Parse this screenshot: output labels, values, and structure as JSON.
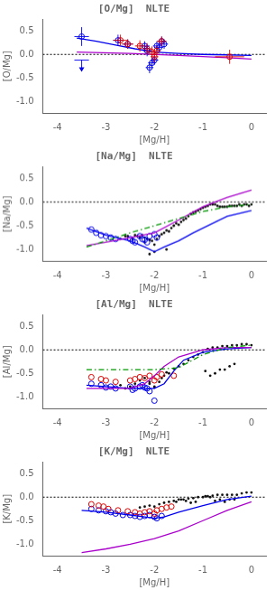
{
  "chart_data": [
    {
      "type": "scatter",
      "title": "[O/Mg]  NLTE",
      "xlabel": "[Mg/H]",
      "ylabel": "[O/Mg]",
      "xlim": [
        -4.3,
        0.3
      ],
      "xticks": [
        -4,
        -3,
        -2,
        -1,
        0
      ],
      "ylim": [
        -1.25,
        0.75
      ],
      "yticks": [
        {
          "value": -1.0,
          "label": "-1.0"
        },
        -0.5,
        {
          "value": 0.0,
          "label": "0.0"
        },
        0.5
      ],
      "grid": false,
      "legend": false,
      "series": [
        {
          "type": "hline",
          "color": "#000000",
          "line_style": "dotted",
          "values": [
            0
          ]
        },
        {
          "type": "line",
          "color": "#0000EE",
          "line_style": "solid",
          "x": [
            -3.6,
            -3.2,
            -2.8,
            -2.4,
            -2.0,
            -1.5,
            -1.0,
            -0.5,
            0.0
          ],
          "values": [
            0.35,
            0.28,
            0.2,
            0.12,
            0.05,
            0.02,
            0.0,
            -0.01,
            -0.02
          ]
        },
        {
          "type": "line",
          "color": "#AA00CC",
          "line_style": "solid",
          "x": [
            -3.6,
            -2.5,
            -1.5,
            -0.5,
            0.0
          ],
          "values": [
            0.05,
            0.02,
            -0.02,
            -0.07,
            -0.1
          ]
        },
        {
          "type": "scatter",
          "color": "#0000EE",
          "marker": "open_circle",
          "x": [
            -3.5,
            -2.75,
            -2.55,
            -2.2,
            -2.15,
            -2.1,
            -2.05,
            -2.0,
            -1.95,
            -1.9,
            -1.85,
            -1.8
          ],
          "values": [
            0.38,
            0.3,
            0.22,
            0.18,
            0.08,
            -0.28,
            -0.18,
            -0.12,
            0.18,
            0.15,
            0.28,
            0.22
          ],
          "xerr": [
            0.15,
            0.1,
            0.1,
            0.1,
            0.08,
            0.08,
            0.08,
            0.08,
            0.08,
            0.08,
            0.08,
            0.08
          ],
          "yerr": [
            0.2,
            0.12,
            0.1,
            0.1,
            0.12,
            0.12,
            0.1,
            0.1,
            0.1,
            0.1,
            0.1,
            0.1
          ]
        },
        {
          "type": "scatter",
          "color": "#0000EE",
          "marker": "down_arrow",
          "x": [
            -3.5
          ],
          "values": [
            -0.12
          ],
          "xerr": [
            0.15
          ]
        },
        {
          "type": "scatter",
          "color": "#DD0000",
          "marker": "open_circle",
          "x": [
            -2.7,
            -2.55,
            -2.3,
            -2.15,
            -2.05,
            -2.0,
            -1.95,
            -1.85,
            -0.45
          ],
          "values": [
            0.3,
            0.22,
            0.18,
            0.12,
            0.05,
            -0.05,
            0.08,
            0.28,
            -0.05
          ],
          "xerr": [
            0.15,
            0.12,
            0.1,
            0.1,
            0.08,
            0.08,
            0.08,
            0.1,
            0.3
          ],
          "yerr": [
            0.12,
            0.1,
            0.12,
            0.12,
            0.12,
            0.12,
            0.1,
            0.1,
            0.15
          ]
        }
      ]
    },
    {
      "type": "scatter",
      "title": "[Na/Mg]  NLTE",
      "xlabel": "[Mg/H]",
      "ylabel": "[Na/Mg]",
      "xlim": [
        -4.3,
        0.3
      ],
      "xticks": [
        -4,
        -3,
        -2,
        -1,
        0
      ],
      "ylim": [
        -1.25,
        0.75
      ],
      "yticks": [
        {
          "value": -1.0,
          "label": "-1.0"
        },
        -0.5,
        {
          "value": 0.0,
          "label": "0.0"
        },
        0.5
      ],
      "grid": false,
      "legend": false,
      "series": [
        {
          "type": "hline",
          "color": "#000000",
          "line_style": "dotted",
          "values": [
            0
          ]
        },
        {
          "type": "scatter",
          "color": "#111111",
          "marker": "dot",
          "x": [
            -2.55,
            -2.45,
            -2.4,
            -2.35,
            -2.3,
            -2.25,
            -2.2,
            -2.15,
            -2.1,
            -2.05,
            -2.0,
            -1.95,
            -1.9,
            -1.85,
            -1.8,
            -1.75,
            -1.7,
            -1.65,
            -1.6,
            -1.55,
            -1.5,
            -1.45,
            -1.4,
            -1.35,
            -1.3,
            -1.25,
            -1.2,
            -1.15,
            -1.1,
            -1.05,
            -1.0,
            -0.95,
            -0.9,
            -0.85,
            -0.8,
            -0.75,
            -0.7,
            -0.65,
            -0.6,
            -0.55,
            -0.5,
            -0.45,
            -0.4,
            -0.35,
            -0.3,
            -0.25,
            -0.2,
            -0.15,
            -0.1,
            -0.05,
            0.0,
            -2.6,
            -2.7,
            -1.75,
            -2.0,
            -2.1,
            -2.2
          ],
          "values": [
            -0.72,
            -0.78,
            -0.7,
            -0.72,
            -0.75,
            -0.7,
            -0.75,
            -0.78,
            -0.8,
            -0.82,
            -0.9,
            -0.78,
            -0.72,
            -0.68,
            -0.65,
            -0.6,
            -0.62,
            -0.55,
            -0.5,
            -0.45,
            -0.48,
            -0.42,
            -0.38,
            -0.35,
            -0.3,
            -0.25,
            -0.22,
            -0.2,
            -0.18,
            -0.15,
            -0.12,
            -0.1,
            -0.08,
            -0.05,
            -0.05,
            -0.05,
            -0.08,
            -0.1,
            -0.1,
            -0.1,
            -0.1,
            -0.08,
            -0.08,
            -0.08,
            -0.08,
            -0.05,
            -0.08,
            -0.05,
            -0.05,
            -0.08,
            -0.05,
            -0.72,
            -0.78,
            -1.0,
            -1.05,
            -1.1,
            -0.85
          ]
        },
        {
          "type": "scatter",
          "color": "#0000EE",
          "marker": "open_circle",
          "x": [
            -3.3,
            -3.2,
            -3.1,
            -3.0,
            -2.9,
            -2.8,
            -2.5,
            -2.45,
            -2.4,
            -2.3,
            -2.25,
            -2.2,
            -2.15,
            -2.1,
            -2.0,
            -1.95
          ],
          "values": [
            -0.58,
            -0.65,
            -0.7,
            -0.72,
            -0.75,
            -0.78,
            -0.78,
            -0.82,
            -0.85,
            -0.72,
            -0.78,
            -0.8,
            -0.85,
            -0.72,
            -0.68,
            -0.75
          ]
        },
        {
          "type": "line",
          "color": "#0000EE",
          "line_style": "solid",
          "x": [
            -3.4,
            -3.0,
            -2.5,
            -2.2,
            -2.0,
            -1.8,
            -1.5,
            -1.2,
            -1.0,
            -0.5,
            0.0
          ],
          "values": [
            -0.55,
            -0.7,
            -0.82,
            -0.95,
            -1.05,
            -0.95,
            -0.82,
            -0.65,
            -0.55,
            -0.3,
            -0.18
          ]
        },
        {
          "type": "line",
          "color": "#AA00CC",
          "line_style": "solid",
          "x": [
            -3.4,
            -3.0,
            -2.5,
            -2.0,
            -1.5,
            -1.0,
            -0.5,
            0.0
          ],
          "values": [
            -0.92,
            -0.85,
            -0.75,
            -0.65,
            -0.38,
            -0.1,
            0.1,
            0.25
          ]
        },
        {
          "type": "line",
          "color": "#009900",
          "line_style": "dashdot",
          "x": [
            -3.4,
            -3.0,
            -2.5,
            -2.0,
            -1.5,
            -1.0,
            -0.5,
            0.0
          ],
          "values": [
            -0.95,
            -0.82,
            -0.65,
            -0.5,
            -0.35,
            -0.2,
            -0.1,
            -0.05
          ]
        }
      ]
    },
    {
      "type": "scatter",
      "title": "[Al/Mg]  NLTE",
      "xlabel": "[Mg/H]",
      "ylabel": "[Al/Mg]",
      "xlim": [
        -4.3,
        0.3
      ],
      "xticks": [
        -4,
        -3,
        -2,
        -1,
        0
      ],
      "ylim": [
        -1.25,
        0.75
      ],
      "yticks": [
        {
          "value": -1.0,
          "label": "-1.0"
        },
        -0.5,
        {
          "value": 0.0,
          "label": "0.0"
        },
        0.5
      ],
      "grid": false,
      "legend": false,
      "series": [
        {
          "type": "hline",
          "color": "#000000",
          "line_style": "dotted",
          "values": [
            0
          ]
        },
        {
          "type": "scatter",
          "color": "#111111",
          "marker": "dot",
          "x": [
            -2.5,
            -2.4,
            -2.3,
            -2.2,
            -2.1,
            -2.0,
            -1.9,
            -1.8,
            -1.7,
            -1.6,
            -1.5,
            -1.4,
            -1.3,
            -1.2,
            -1.1,
            -1.0,
            -0.9,
            -0.8,
            -0.7,
            -0.6,
            -0.5,
            -0.4,
            -0.3,
            -0.2,
            -0.1,
            0.0,
            -2.6,
            -2.7,
            -1.75,
            -1.85,
            -2.0,
            -2.1,
            -0.35,
            -0.55,
            -0.75,
            -0.65,
            -0.45,
            -0.85,
            -0.95
          ],
          "values": [
            -0.78,
            -0.72,
            -0.65,
            -0.6,
            -0.72,
            -0.8,
            -0.68,
            -0.55,
            -0.5,
            -0.4,
            -0.35,
            -0.3,
            -0.22,
            -0.15,
            -0.1,
            -0.05,
            0.02,
            0.05,
            0.05,
            0.08,
            0.08,
            0.1,
            0.1,
            0.12,
            0.12,
            0.1,
            -0.82,
            -0.75,
            -0.48,
            -0.6,
            -0.78,
            -0.68,
            -0.3,
            -0.42,
            -0.5,
            -0.42,
            -0.35,
            -0.55,
            -0.45
          ]
        },
        {
          "type": "scatter",
          "color": "#0000EE",
          "marker": "open_circle",
          "x": [
            -3.3,
            -3.1,
            -3.0,
            -2.9,
            -2.8,
            -2.5,
            -2.45,
            -2.4,
            -2.3,
            -2.25,
            -2.2,
            -2.15,
            -2.1,
            -2.0
          ],
          "values": [
            -0.72,
            -0.75,
            -0.8,
            -0.78,
            -0.82,
            -0.78,
            -0.85,
            -0.82,
            -0.78,
            -0.75,
            -0.8,
            -0.82,
            -0.88,
            -1.08
          ]
        },
        {
          "type": "scatter",
          "color": "#DD0000",
          "marker": "open_circle",
          "x": [
            -3.3,
            -3.1,
            -3.0,
            -2.8,
            -2.5,
            -2.4,
            -2.3,
            -2.2,
            -2.1,
            -2.0,
            -1.95,
            -1.85,
            -1.6
          ],
          "values": [
            -0.58,
            -0.62,
            -0.65,
            -0.68,
            -0.65,
            -0.62,
            -0.58,
            -0.6,
            -0.55,
            -0.65,
            -0.58,
            -0.52,
            -0.55
          ]
        },
        {
          "type": "line",
          "color": "#0000EE",
          "line_style": "solid",
          "x": [
            -3.4,
            -3.0,
            -2.5,
            -2.2,
            -2.0,
            -1.8,
            -1.6,
            -1.4,
            -1.0,
            -0.5,
            0.0
          ],
          "values": [
            -0.75,
            -0.78,
            -0.82,
            -0.82,
            -0.82,
            -0.72,
            -0.45,
            -0.22,
            -0.05,
            0.02,
            0.05
          ]
        },
        {
          "type": "line",
          "color": "#AA00CC",
          "line_style": "solid",
          "x": [
            -3.4,
            -3.0,
            -2.5,
            -2.2,
            -2.0,
            -1.8,
            -1.5,
            -1.0,
            -0.5,
            0.0
          ],
          "values": [
            -0.82,
            -0.82,
            -0.82,
            -0.72,
            -0.55,
            -0.35,
            -0.15,
            0.0,
            0.05,
            0.05
          ]
        },
        {
          "type": "line",
          "color": "#009900",
          "line_style": "dashdot",
          "x": [
            -3.4,
            -3.0,
            -2.5,
            -2.0,
            -1.5,
            -1.0,
            -0.5,
            0.0
          ],
          "values": [
            -0.42,
            -0.42,
            -0.42,
            -0.42,
            -0.38,
            -0.1,
            0.05,
            0.1
          ]
        }
      ]
    },
    {
      "type": "scatter",
      "title": "[K/Mg]  NLTE",
      "xlabel": "[Mg/H]",
      "ylabel": "[K/Mg]",
      "xlim": [
        -4.3,
        0.3
      ],
      "xticks": [
        -4,
        -3,
        -2,
        -1,
        0
      ],
      "ylim": [
        -1.25,
        0.75
      ],
      "yticks": [
        {
          "value": -1.0,
          "label": "-1.0"
        },
        -0.5,
        {
          "value": 0.0,
          "label": "0.0"
        },
        0.5
      ],
      "grid": false,
      "legend": false,
      "series": [
        {
          "type": "hline",
          "color": "#000000",
          "line_style": "dotted",
          "values": [
            0
          ]
        },
        {
          "type": "scatter",
          "color": "#111111",
          "marker": "dot",
          "x": [
            -2.3,
            -2.2,
            -2.1,
            -2.0,
            -1.9,
            -1.8,
            -1.7,
            -1.6,
            -1.5,
            -1.4,
            -1.3,
            -1.2,
            -1.1,
            -1.0,
            -0.9,
            -0.8,
            -0.7,
            -0.6,
            -0.5,
            -0.4,
            -0.3,
            -0.2,
            -0.1,
            0.0,
            -0.35,
            -0.55,
            -0.75,
            -0.65,
            -1.15,
            -1.25,
            -1.35,
            -1.45,
            -1.55,
            -0.45,
            -0.85,
            -0.95
          ],
          "values": [
            -0.22,
            -0.2,
            -0.18,
            -0.2,
            -0.15,
            -0.12,
            -0.1,
            -0.08,
            -0.05,
            -0.05,
            -0.03,
            -0.02,
            0.0,
            0.0,
            0.02,
            0.03,
            0.05,
            0.05,
            0.05,
            0.05,
            0.05,
            0.08,
            0.1,
            0.1,
            -0.05,
            -0.1,
            -0.08,
            -0.05,
            -0.1,
            -0.12,
            -0.08,
            -0.05,
            -0.1,
            -0.05,
            0.0,
            0.02
          ]
        },
        {
          "type": "scatter",
          "color": "#0000EE",
          "marker": "open_circle",
          "x": [
            -3.3,
            -3.15,
            -3.0,
            -2.9,
            -2.8,
            -2.65,
            -2.5,
            -2.4,
            -2.3,
            -2.2,
            -2.1,
            -2.0,
            -1.95,
            -1.85
          ],
          "values": [
            -0.25,
            -0.28,
            -0.3,
            -0.32,
            -0.35,
            -0.38,
            -0.38,
            -0.4,
            -0.42,
            -0.4,
            -0.38,
            -0.42,
            -0.45,
            -0.4
          ]
        },
        {
          "type": "scatter",
          "color": "#DD0000",
          "marker": "open_circle",
          "x": [
            -3.3,
            -3.15,
            -3.05,
            -2.95,
            -2.75,
            -2.55,
            -2.4,
            -2.3,
            -2.2,
            -2.1,
            -2.0,
            -1.95,
            -1.85,
            -1.75,
            -1.65
          ],
          "values": [
            -0.15,
            -0.18,
            -0.2,
            -0.25,
            -0.28,
            -0.3,
            -0.32,
            -0.35,
            -0.32,
            -0.3,
            -0.35,
            -0.28,
            -0.25,
            -0.22,
            -0.2
          ]
        },
        {
          "type": "line",
          "color": "#0000EE",
          "line_style": "solid",
          "x": [
            -3.5,
            -3.0,
            -2.5,
            -2.2,
            -2.0,
            -1.8,
            -1.5,
            -1.0,
            -0.5,
            0.0
          ],
          "values": [
            -0.28,
            -0.32,
            -0.38,
            -0.42,
            -0.45,
            -0.42,
            -0.32,
            -0.18,
            -0.05,
            0.02
          ]
        },
        {
          "type": "line",
          "color": "#AA00CC",
          "line_style": "solid",
          "x": [
            -3.5,
            -3.0,
            -2.5,
            -2.0,
            -1.5,
            -1.0,
            -0.5,
            0.0
          ],
          "values": [
            -1.18,
            -1.1,
            -1.0,
            -0.88,
            -0.72,
            -0.5,
            -0.28,
            -0.1
          ]
        }
      ]
    }
  ]
}
